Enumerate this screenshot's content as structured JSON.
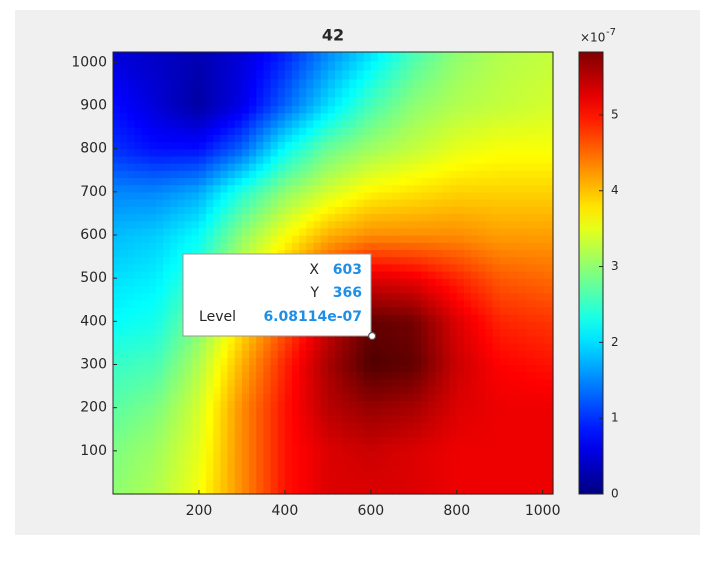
{
  "chart_data": {
    "type": "contourf",
    "title": "42",
    "x": [
      0,
      100,
      200,
      300,
      400,
      500,
      600,
      700,
      800,
      900,
      1024
    ],
    "y": [
      0,
      100,
      200,
      300,
      400,
      500,
      600,
      700,
      800,
      900,
      1024
    ],
    "z": [
      [
        3e-07,
        3.2e-07,
        3.6e-07,
        4.3e-07,
        5e-07,
        5.3e-07,
        5.3e-07,
        5.3e-07,
        5.2e-07,
        5.2e-07,
        5.2e-07
      ],
      [
        2.9e-07,
        3.1e-07,
        3.5e-07,
        4.3e-07,
        5e-07,
        5.3e-07,
        5.4e-07,
        5.3e-07,
        5.2e-07,
        5.2e-07,
        5.2e-07
      ],
      [
        2.7e-07,
        2.9e-07,
        3.4e-07,
        4.3e-07,
        5e-07,
        5.5e-07,
        5.7e-07,
        5.6e-07,
        5.3e-07,
        5.2e-07,
        5.2e-07
      ],
      [
        2.5e-07,
        2.6e-07,
        3.2e-07,
        4.1e-07,
        4.9e-07,
        5.6e-07,
        6.1e-07,
        6e-07,
        5.4e-07,
        5.1e-07,
        5e-07
      ],
      [
        2.2e-07,
        2.3e-07,
        2.9e-07,
        3.8e-07,
        4.6e-07,
        5.4e-07,
        6e-07,
        5.9e-07,
        5.3e-07,
        4.9e-07,
        4.8e-07
      ],
      [
        2e-07,
        2.1e-07,
        2.5e-07,
        3.4e-07,
        4.1e-07,
        4.8e-07,
        5.3e-07,
        5.2e-07,
        4.9e-07,
        4.6e-07,
        4.5e-07
      ],
      [
        1.8e-07,
        1.9e-07,
        2.2e-07,
        3e-07,
        3.6e-07,
        4.1e-07,
        4.3e-07,
        4.3e-07,
        4.3e-07,
        4.2e-07,
        4.2e-07
      ],
      [
        1.5e-07,
        1.5e-07,
        1.7e-07,
        2.4e-07,
        3e-07,
        3.4e-07,
        3.7e-07,
        3.8e-07,
        3.9e-07,
        3.9e-07,
        3.9e-07
      ],
      [
        1e-07,
        8e-08,
        8e-08,
        1.3e-07,
        2.2e-07,
        2.8e-07,
        3.1e-07,
        3.3e-07,
        3.5e-07,
        3.6e-07,
        3.6e-07
      ],
      [
        8e-08,
        5e-08,
        2e-08,
        6e-08,
        1.3e-07,
        2e-07,
        2.6e-07,
        3e-07,
        3.2e-07,
        3.3e-07,
        3.4e-07
      ],
      [
        5e-08,
        4e-08,
        3e-08,
        5e-08,
        9e-08,
        1.5e-07,
        2e-07,
        2.6e-07,
        3e-07,
        3.2e-07,
        3.3e-07
      ]
    ],
    "xlim": [
      0,
      1024
    ],
    "ylim": [
      0,
      1024
    ],
    "xticks": [
      200,
      400,
      600,
      800,
      1000
    ],
    "yticks": [
      100,
      200,
      300,
      400,
      500,
      600,
      700,
      800,
      900,
      1000
    ],
    "clim": [
      0,
      5.83e-07
    ],
    "cticks": [
      {
        "value": 0,
        "label": "0"
      },
      {
        "value": 1e-07,
        "label": "1"
      },
      {
        "value": 2e-07,
        "label": "2"
      },
      {
        "value": 3e-07,
        "label": "3"
      },
      {
        "value": 4e-07,
        "label": "4"
      },
      {
        "value": 5e-07,
        "label": "5"
      }
    ],
    "colorbar_multiplier": "×10",
    "colorbar_exponent": "-7",
    "colormap": "jet",
    "datatip": {
      "x_label": "X",
      "x": 603,
      "y_label": "Y",
      "y": 366,
      "level_label": "Level",
      "level": {
        "value": 6.08114e-07,
        "label": "6.08114e-07"
      }
    }
  }
}
